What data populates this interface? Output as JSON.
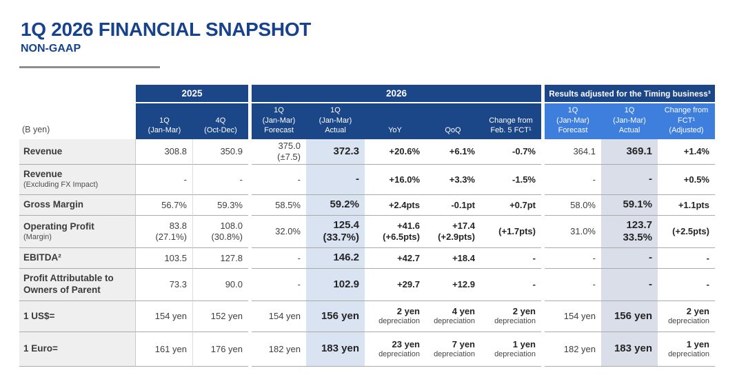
{
  "title": "1Q 2026 FINANCIAL SNAPSHOT",
  "subtitle": "NON-GAAP",
  "colors": {
    "title_blue": "#17428C",
    "header_navy": "#1B4688",
    "adjusted_header_blue": "#3E7EDC",
    "actual_column_bg": "#DAE3F2",
    "adjusted_actual_column_bg": "#D9DEE9",
    "label_column_bg": "#EFEFEF"
  },
  "table": {
    "unit_label": "(B yen)",
    "groups": {
      "y2025": "2025",
      "y2026": "2026",
      "adjusted": "Results adjusted for the Timing business³"
    },
    "col_headers": {
      "q1_25": [
        "1Q",
        "(Jan-Mar)"
      ],
      "q4_25": [
        "4Q",
        "(Oct-Dec)"
      ],
      "fct": [
        "1Q",
        "(Jan-Mar)",
        "Forecast"
      ],
      "act": [
        "1Q",
        "(Jan-Mar)",
        "Actual"
      ],
      "yoy": [
        "YoY"
      ],
      "qoq": [
        "QoQ"
      ],
      "chg": [
        "Change from",
        "Feb. 5 FCT¹"
      ],
      "rfct": [
        "1Q",
        "(Jan-Mar)",
        "Forecast"
      ],
      "ract": [
        "1Q",
        "(Jan-Mar)",
        "Actual"
      ],
      "rchg": [
        "Change from",
        "FCT¹",
        "(Adjusted)"
      ]
    },
    "rows": [
      {
        "id": "revenue",
        "label": "Revenue",
        "sublabel": "",
        "fx": false,
        "cells": [
          {
            "v": "308.8",
            "s": ""
          },
          {
            "v": "350.9",
            "s": ""
          },
          {
            "v": "375.0",
            "s": "(±7.5)"
          },
          {
            "v": "372.3",
            "s": ""
          },
          {
            "v": "+20.6%",
            "s": ""
          },
          {
            "v": "+6.1%",
            "s": ""
          },
          {
            "v": "-0.7%",
            "s": ""
          },
          {
            "v": "364.1",
            "s": ""
          },
          {
            "v": "369.1",
            "s": ""
          },
          {
            "v": "+1.4%",
            "s": ""
          }
        ]
      },
      {
        "id": "revenue_exfx",
        "label": "Revenue",
        "sublabel": "(Excluding FX Impact)",
        "fx": false,
        "cells": [
          {
            "v": "-",
            "s": ""
          },
          {
            "v": "-",
            "s": ""
          },
          {
            "v": "-",
            "s": ""
          },
          {
            "v": "-",
            "s": ""
          },
          {
            "v": "+16.0%",
            "s": ""
          },
          {
            "v": "+3.3%",
            "s": ""
          },
          {
            "v": "-1.5%",
            "s": ""
          },
          {
            "v": "-",
            "s": ""
          },
          {
            "v": "-",
            "s": ""
          },
          {
            "v": "+0.5%",
            "s": ""
          }
        ]
      },
      {
        "id": "gross_margin",
        "label": "Gross Margin",
        "sublabel": "",
        "fx": false,
        "cells": [
          {
            "v": "56.7%",
            "s": ""
          },
          {
            "v": "59.3%",
            "s": ""
          },
          {
            "v": "58.5%",
            "s": ""
          },
          {
            "v": "59.2%",
            "s": ""
          },
          {
            "v": "+2.4pts",
            "s": ""
          },
          {
            "v": "-0.1pt",
            "s": ""
          },
          {
            "v": "+0.7pt",
            "s": ""
          },
          {
            "v": "58.0%",
            "s": ""
          },
          {
            "v": "59.1%",
            "s": ""
          },
          {
            "v": "+1.1pts",
            "s": ""
          }
        ]
      },
      {
        "id": "operating_profit",
        "label": "Operating Profit",
        "sublabel": "(Margin)",
        "fx": false,
        "cells": [
          {
            "v": "83.8",
            "s": "(27.1%)"
          },
          {
            "v": "108.0",
            "s": "(30.8%)"
          },
          {
            "v": "32.0%",
            "s": ""
          },
          {
            "v": "125.4",
            "s": "(33.7%)"
          },
          {
            "v": "+41.6",
            "s": "(+6.5pts)"
          },
          {
            "v": "+17.4",
            "s": "(+2.9pts)"
          },
          {
            "v": "(+1.7pts)",
            "s": ""
          },
          {
            "v": "31.0%",
            "s": ""
          },
          {
            "v": "123.7",
            "s": "33.5%"
          },
          {
            "v": "(+2.5pts)",
            "s": ""
          }
        ]
      },
      {
        "id": "ebitda",
        "label": "EBITDA²",
        "sublabel": "",
        "fx": false,
        "cells": [
          {
            "v": "103.5",
            "s": ""
          },
          {
            "v": "127.8",
            "s": ""
          },
          {
            "v": "-",
            "s": ""
          },
          {
            "v": "146.2",
            "s": ""
          },
          {
            "v": "+42.7",
            "s": ""
          },
          {
            "v": "+18.4",
            "s": ""
          },
          {
            "v": "-",
            "s": ""
          },
          {
            "v": "-",
            "s": ""
          },
          {
            "v": "-",
            "s": ""
          },
          {
            "v": "-",
            "s": ""
          }
        ]
      },
      {
        "id": "profit_owners",
        "label": "Profit Attributable to Owners of Parent",
        "sublabel": "",
        "fx": false,
        "cells": [
          {
            "v": "73.3",
            "s": ""
          },
          {
            "v": "90.0",
            "s": ""
          },
          {
            "v": "-",
            "s": ""
          },
          {
            "v": "102.9",
            "s": ""
          },
          {
            "v": "+29.7",
            "s": ""
          },
          {
            "v": "+12.9",
            "s": ""
          },
          {
            "v": "-",
            "s": ""
          },
          {
            "v": "-",
            "s": ""
          },
          {
            "v": "-",
            "s": ""
          },
          {
            "v": "-",
            "s": ""
          }
        ]
      },
      {
        "id": "usd",
        "label": "1 US$=",
        "sublabel": "",
        "fx": true,
        "cells": [
          {
            "v": "154 yen",
            "s": ""
          },
          {
            "v": "152 yen",
            "s": ""
          },
          {
            "v": "154 yen",
            "s": ""
          },
          {
            "v": "156 yen",
            "s": ""
          },
          {
            "v": "2 yen",
            "s": "depreciation"
          },
          {
            "v": "4 yen",
            "s": "depreciation"
          },
          {
            "v": "2 yen",
            "s": "depreciation"
          },
          {
            "v": "154 yen",
            "s": ""
          },
          {
            "v": "156 yen",
            "s": ""
          },
          {
            "v": "2 yen",
            "s": "depreciation"
          }
        ]
      },
      {
        "id": "euro",
        "label": "1 Euro=",
        "sublabel": "",
        "fx": true,
        "cells": [
          {
            "v": "161 yen",
            "s": ""
          },
          {
            "v": "176 yen",
            "s": ""
          },
          {
            "v": "182 yen",
            "s": ""
          },
          {
            "v": "183 yen",
            "s": ""
          },
          {
            "v": "23 yen",
            "s": "depreciation"
          },
          {
            "v": "7 yen",
            "s": "depreciation"
          },
          {
            "v": "1 yen",
            "s": "depreciation"
          },
          {
            "v": "182 yen",
            "s": ""
          },
          {
            "v": "183 yen",
            "s": ""
          },
          {
            "v": "1 yen",
            "s": "depreciation"
          }
        ]
      }
    ]
  }
}
